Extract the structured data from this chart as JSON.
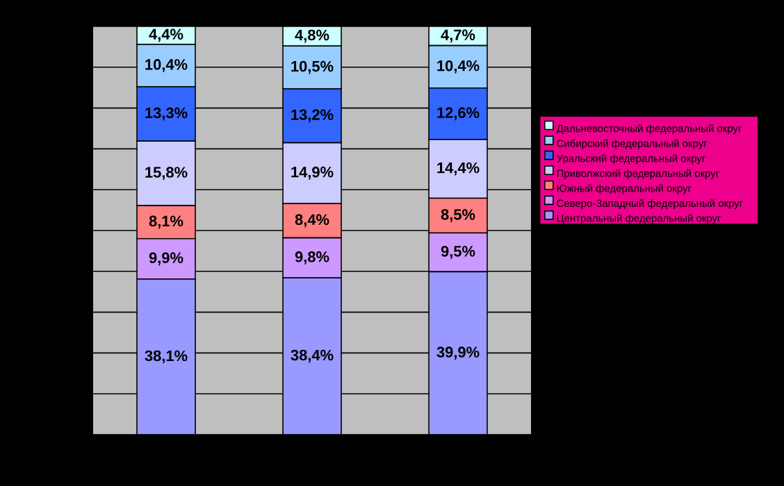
{
  "chart_data": {
    "type": "bar",
    "stacked": true,
    "categories": [
      null,
      null,
      null
    ],
    "tick_labels": false,
    "grid": "y",
    "legend": "right",
    "series": [
      {
        "name": "Центральный федеральный округ",
        "color": "#9999ff",
        "values": [
          38.1,
          38.4,
          39.9
        ],
        "value_labels": [
          "38,1%",
          "38,4%",
          "39,9%"
        ]
      },
      {
        "name": "Северо-Западный федеральный округ",
        "color": "#cc99ff",
        "values": [
          9.9,
          9.8,
          9.5
        ],
        "value_labels": [
          "9,9%",
          "9,8%",
          "9,5%"
        ]
      },
      {
        "name": "Южный федеральный округ",
        "color": "#ff8080",
        "values": [
          8.1,
          8.4,
          8.5
        ],
        "value_labels": [
          "8,1%",
          "8,4%",
          "8,5%"
        ]
      },
      {
        "name": "Приволжский федеральный округ",
        "color": "#ccccff",
        "values": [
          15.8,
          14.9,
          14.4
        ],
        "value_labels": [
          "15,8%",
          "14,9%",
          "14,4%"
        ]
      },
      {
        "name": "Уральский федеральный округ",
        "color": "#3366ff",
        "values": [
          13.3,
          13.2,
          12.6
        ],
        "value_labels": [
          "13,3%",
          "13,2%",
          "12,6%"
        ]
      },
      {
        "name": "Сибирский федеральный округ",
        "color": "#99ccff",
        "values": [
          10.4,
          10.5,
          10.4
        ],
        "value_labels": [
          "10,4%",
          "10,5%",
          "10,4%"
        ]
      },
      {
        "name": "Дальневосточный федеральный округ",
        "color": "#ccffff",
        "values": [
          4.4,
          4.8,
          4.7
        ],
        "value_labels": [
          "4,4%",
          "4,8%",
          "4,7%"
        ]
      }
    ]
  }
}
